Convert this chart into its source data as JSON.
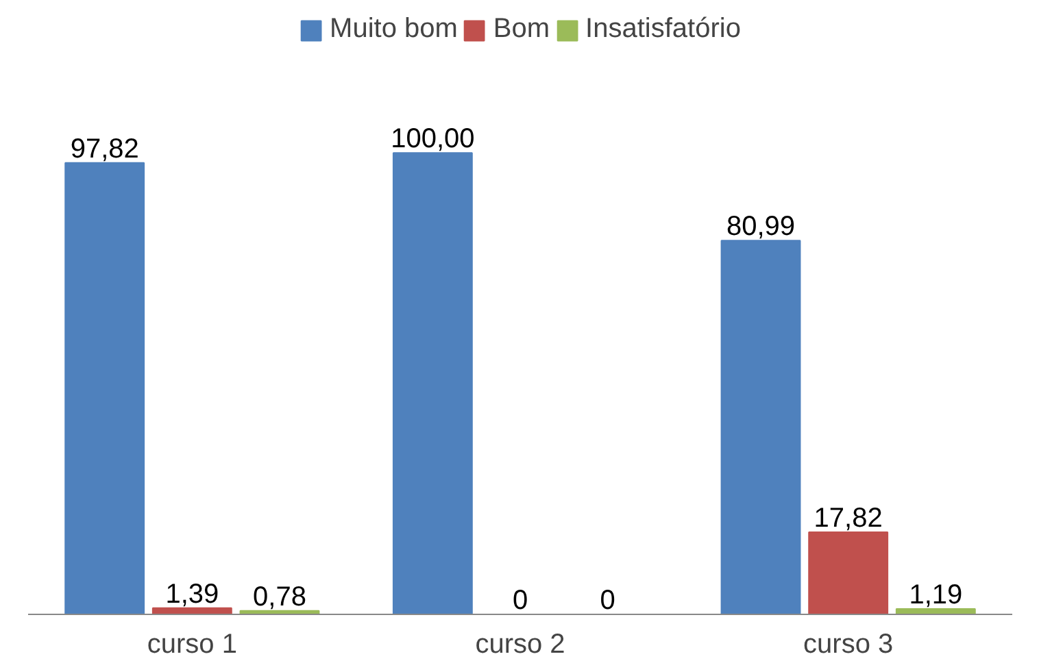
{
  "chart_data": {
    "type": "bar",
    "categories": [
      "curso 1",
      "curso 2",
      "curso 3"
    ],
    "series": [
      {
        "name": "Muito bom",
        "color": "#4f81bd",
        "values": [
          97.82,
          100.0,
          80.99
        ],
        "value_labels": [
          "97,82",
          "100,00",
          "80,99"
        ]
      },
      {
        "name": "Bom",
        "color": "#c0504d",
        "values": [
          1.39,
          0,
          17.82
        ],
        "value_labels": [
          "1,39",
          "0",
          "17,82"
        ]
      },
      {
        "name": "Insatisfatório",
        "color": "#9bbb59",
        "values": [
          0.78,
          0,
          1.19
        ],
        "value_labels": [
          "0,78",
          "0",
          "1,19"
        ]
      }
    ],
    "legend": "top",
    "grid": false,
    "tick_labels": "x"
  }
}
